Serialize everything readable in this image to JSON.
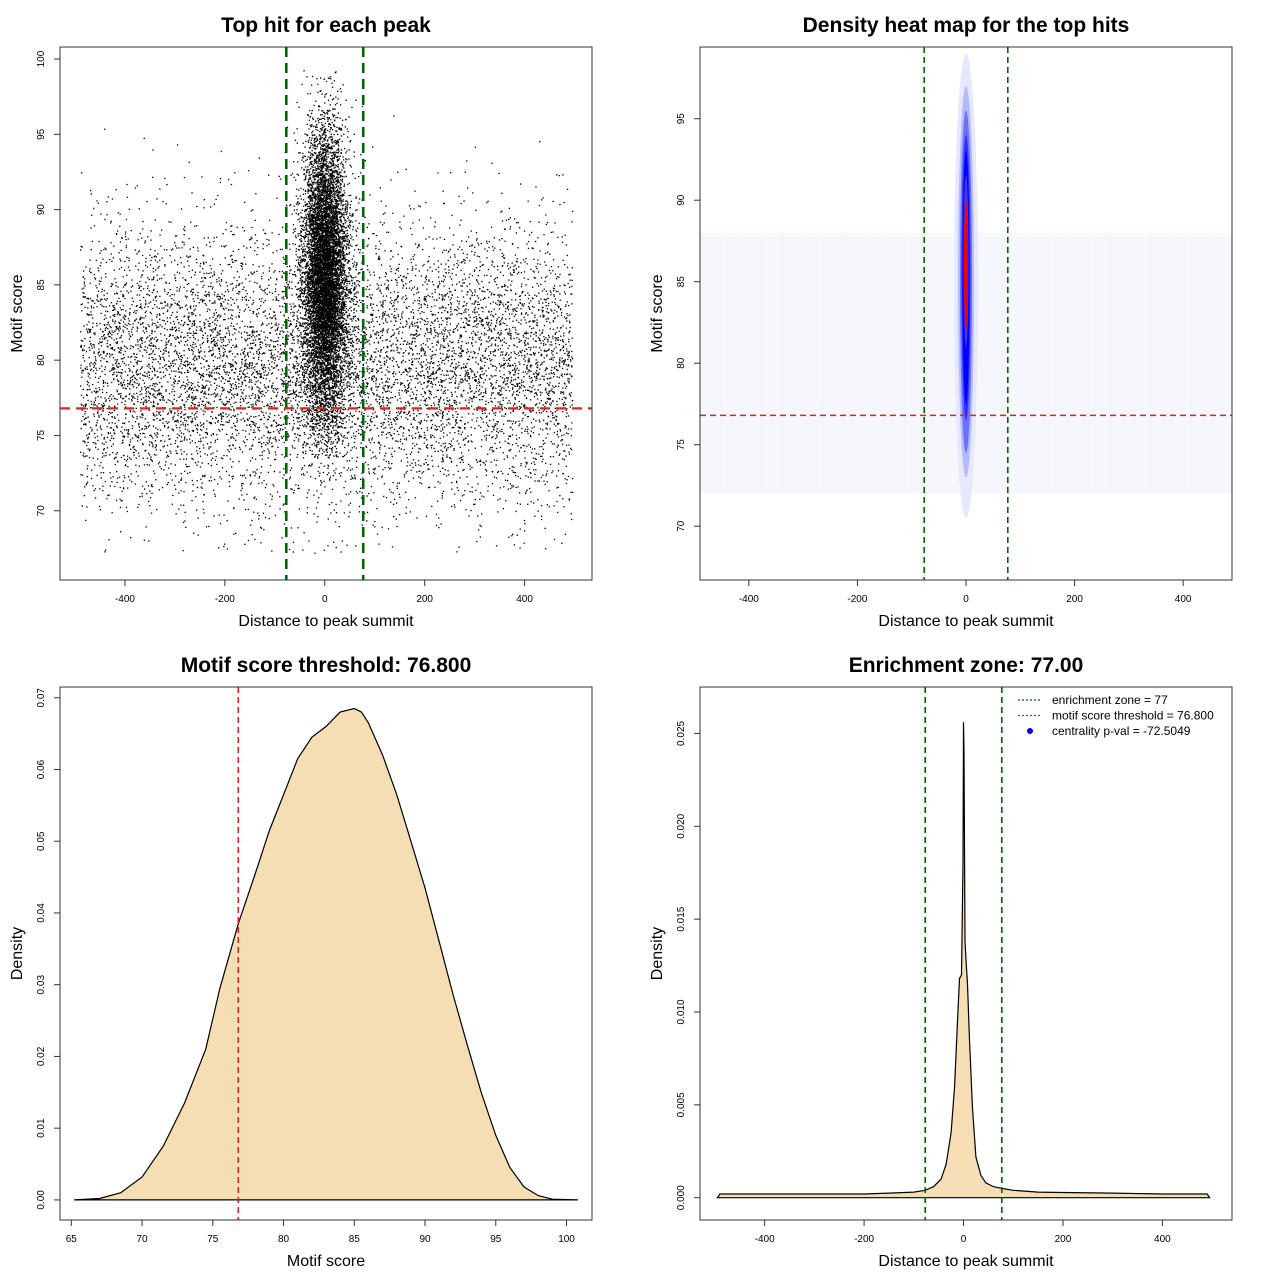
{
  "chart_data": [
    {
      "type": "scatter",
      "title": "Top hit for each peak",
      "xlabel": "Distance to peak summit",
      "ylabel": "Motif score",
      "xlim": [
        -530,
        535
      ],
      "ylim": [
        65.4,
        100.8
      ],
      "xticks": [
        -400,
        -200,
        0,
        200,
        400
      ],
      "yticks": [
        70,
        75,
        80,
        85,
        90,
        95,
        100
      ],
      "point_color": "#000000",
      "series": [
        {
          "points": {
            "background": {
              "x_range": [
                -490,
                495
              ],
              "y_center": 79.6,
              "y_spread": 4.6,
              "y_range": [
                67.2,
                96.5
              ]
            },
            "core": {
              "x_center": 0,
              "x_spread": 22,
              "y_center": 85.5,
              "y_spread": 4.8,
              "y_range": [
                73.5,
                99.3
              ]
            }
          }
        }
      ],
      "vlines": [
        {
          "x": -77,
          "color": "#006400",
          "style": "dashed"
        },
        {
          "x": 77,
          "color": "#006400",
          "style": "dashed"
        }
      ],
      "hlines": [
        {
          "y": 76.8,
          "color": "#dd2222",
          "style": "dashed"
        }
      ]
    },
    {
      "type": "heatmap",
      "title": "Density heat map for the top hits",
      "xlabel": "Distance to peak summit",
      "ylabel": "Motif score",
      "xlim": [
        -490,
        490
      ],
      "ylim": [
        66.7,
        99.4
      ],
      "xticks": [
        -400,
        -200,
        0,
        200,
        400
      ],
      "yticks": [
        70,
        75,
        80,
        85,
        90,
        95
      ],
      "colorscale": [
        "#ffffff",
        "#0000ff",
        "#ff0000"
      ],
      "peak": {
        "x": 0,
        "y": 86
      },
      "vlines": [
        {
          "x": -77,
          "color": "#006400",
          "style": "dashed"
        },
        {
          "x": 77,
          "color": "#006400",
          "style": "dashed"
        }
      ],
      "hlines": [
        {
          "y": 76.8,
          "color": "#dd2222",
          "style": "dashed"
        }
      ]
    },
    {
      "type": "area",
      "title": "Motif score threshold: 76.800",
      "xlabel": "Motif score",
      "ylabel": "Density",
      "xlim": [
        64.2,
        101.8
      ],
      "ylim": [
        -0.0028,
        0.0715
      ],
      "xticks": [
        65,
        70,
        75,
        80,
        85,
        90,
        95,
        100
      ],
      "yticks": [
        0.0,
        0.01,
        0.02,
        0.03,
        0.04,
        0.05,
        0.06,
        0.07
      ],
      "ytick_labels": [
        "0.00",
        "0.01",
        "0.02",
        "0.03",
        "0.04",
        "0.05",
        "0.06",
        "0.07"
      ],
      "fill_color": "#f5deb3",
      "x": [
        65.2,
        67,
        68.5,
        70,
        71.5,
        73,
        74.5,
        75.5,
        76.8,
        78,
        79,
        80,
        81,
        82,
        83,
        84,
        85,
        85.5,
        86,
        87,
        88,
        89,
        90,
        91,
        92,
        93,
        94,
        95,
        96,
        97,
        98,
        99,
        100.8
      ],
      "values": [
        0.0,
        0.0002,
        0.001,
        0.0032,
        0.0075,
        0.0135,
        0.021,
        0.0295,
        0.0385,
        0.0455,
        0.0515,
        0.0565,
        0.0615,
        0.0645,
        0.066,
        0.068,
        0.0685,
        0.068,
        0.0665,
        0.062,
        0.0565,
        0.05,
        0.0435,
        0.036,
        0.0285,
        0.0215,
        0.0148,
        0.009,
        0.0045,
        0.0018,
        0.0006,
        0.0001,
        0.0
      ],
      "vlines": [
        {
          "x": 76.8,
          "color": "#dd2222",
          "style": "dashed"
        }
      ]
    },
    {
      "type": "area",
      "title": "Enrichment zone: 77.00",
      "xlabel": "Distance to peak summit",
      "ylabel": "Density",
      "xlim": [
        -530,
        540
      ],
      "ylim": [
        -0.0012,
        0.0275
      ],
      "xticks": [
        -400,
        -200,
        0,
        200,
        400
      ],
      "yticks": [
        0.0,
        0.005,
        0.01,
        0.015,
        0.02,
        0.025
      ],
      "ytick_labels": [
        "0.000",
        "0.005",
        "0.010",
        "0.015",
        "0.020",
        "0.025"
      ],
      "fill_color": "#f5deb3",
      "x": [
        -495,
        -490,
        -400,
        -300,
        -200,
        -150,
        -100,
        -77,
        -60,
        -45,
        -35,
        -25,
        -18,
        -12,
        -8,
        -4,
        -1,
        0,
        1,
        3,
        5,
        8,
        12,
        18,
        25,
        35,
        45,
        60,
        77,
        100,
        150,
        200,
        300,
        400,
        490,
        495
      ],
      "values": [
        0.0,
        0.0002,
        0.0002,
        0.0002,
        0.0002,
        0.00025,
        0.0003,
        0.0004,
        0.0006,
        0.001,
        0.0018,
        0.0035,
        0.006,
        0.0095,
        0.0118,
        0.012,
        0.018,
        0.0256,
        0.024,
        0.0138,
        0.0128,
        0.0115,
        0.0085,
        0.0048,
        0.0022,
        0.0012,
        0.0008,
        0.0006,
        0.0005,
        0.0004,
        0.0003,
        0.00028,
        0.00025,
        0.0002,
        0.0002,
        0.0
      ],
      "vlines": [
        {
          "x": -77,
          "color": "#006400",
          "style": "dashed"
        },
        {
          "x": 77,
          "color": "#006400",
          "style": "dashed"
        }
      ],
      "legend": {
        "position": "top-right",
        "entries": [
          {
            "label": "enrichment zone = 77",
            "color": "#006400",
            "marker": "dotted-line"
          },
          {
            "label": "motif score threshold = 76.800",
            "color": "#dd2222",
            "marker": "dotted-line"
          },
          {
            "label": "centrality p-val = -72.5049",
            "color": "#0000ff",
            "marker": "dot"
          }
        ]
      }
    }
  ]
}
